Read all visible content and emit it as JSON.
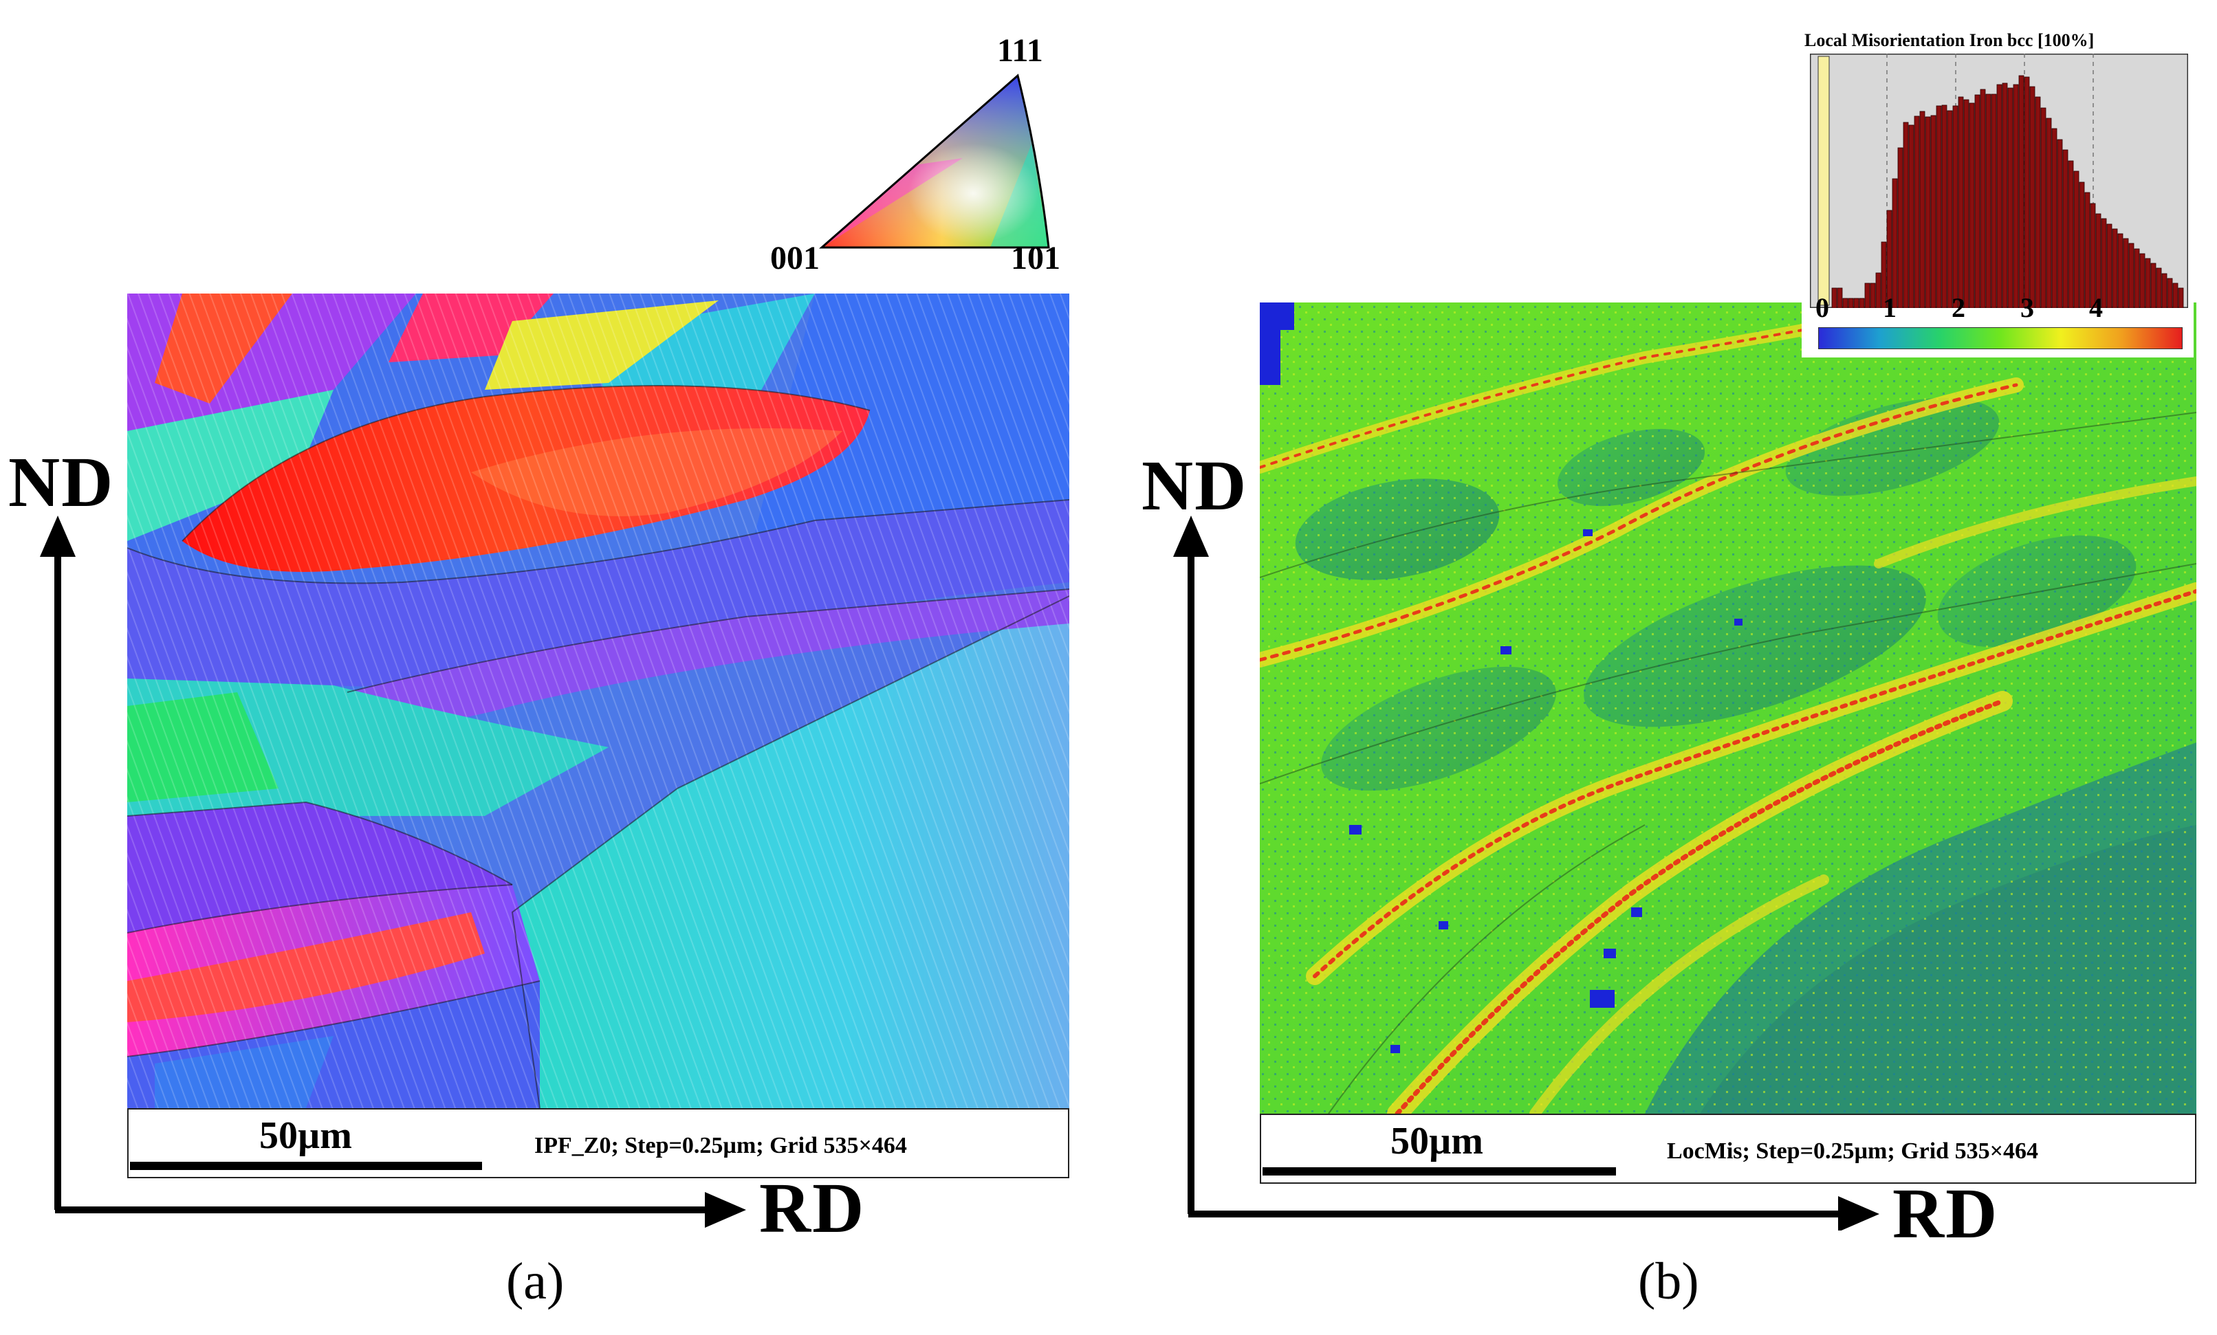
{
  "panels": [
    {
      "id": "a",
      "panel_label": "(a)",
      "scale_label": "50µm",
      "info": "IPF_Z0; Step=0.25µm; Grid 535×464",
      "vertical_axis": "ND",
      "horizontal_axis": "RD"
    },
    {
      "id": "b",
      "panel_label": "(b)",
      "scale_label": "50µm",
      "info": "LocMis; Step=0.25µm; Grid 535×464",
      "vertical_axis": "ND",
      "horizontal_axis": "RD"
    }
  ],
  "ipf_key": {
    "top": "111",
    "left": "001",
    "right": "101"
  },
  "histogram": {
    "title": "Local Misorientation Iron bcc [100%]",
    "ticks": [
      "0",
      "1",
      "2",
      "3",
      "4"
    ],
    "bar_color": "#8a0f0f",
    "colorbar": [
      "#2a2ad8",
      "#1ea0d0",
      "#28d26a",
      "#70e61e",
      "#f0f01e",
      "#f0a01e",
      "#e61e1e"
    ]
  },
  "colors": {
    "red_grain": "#ff2a10",
    "blue_grain": "#4a56f0",
    "cyan_grain": "#30d8e6",
    "magenta_grain": "#c83cf0",
    "green_field": "#5ce02a"
  }
}
